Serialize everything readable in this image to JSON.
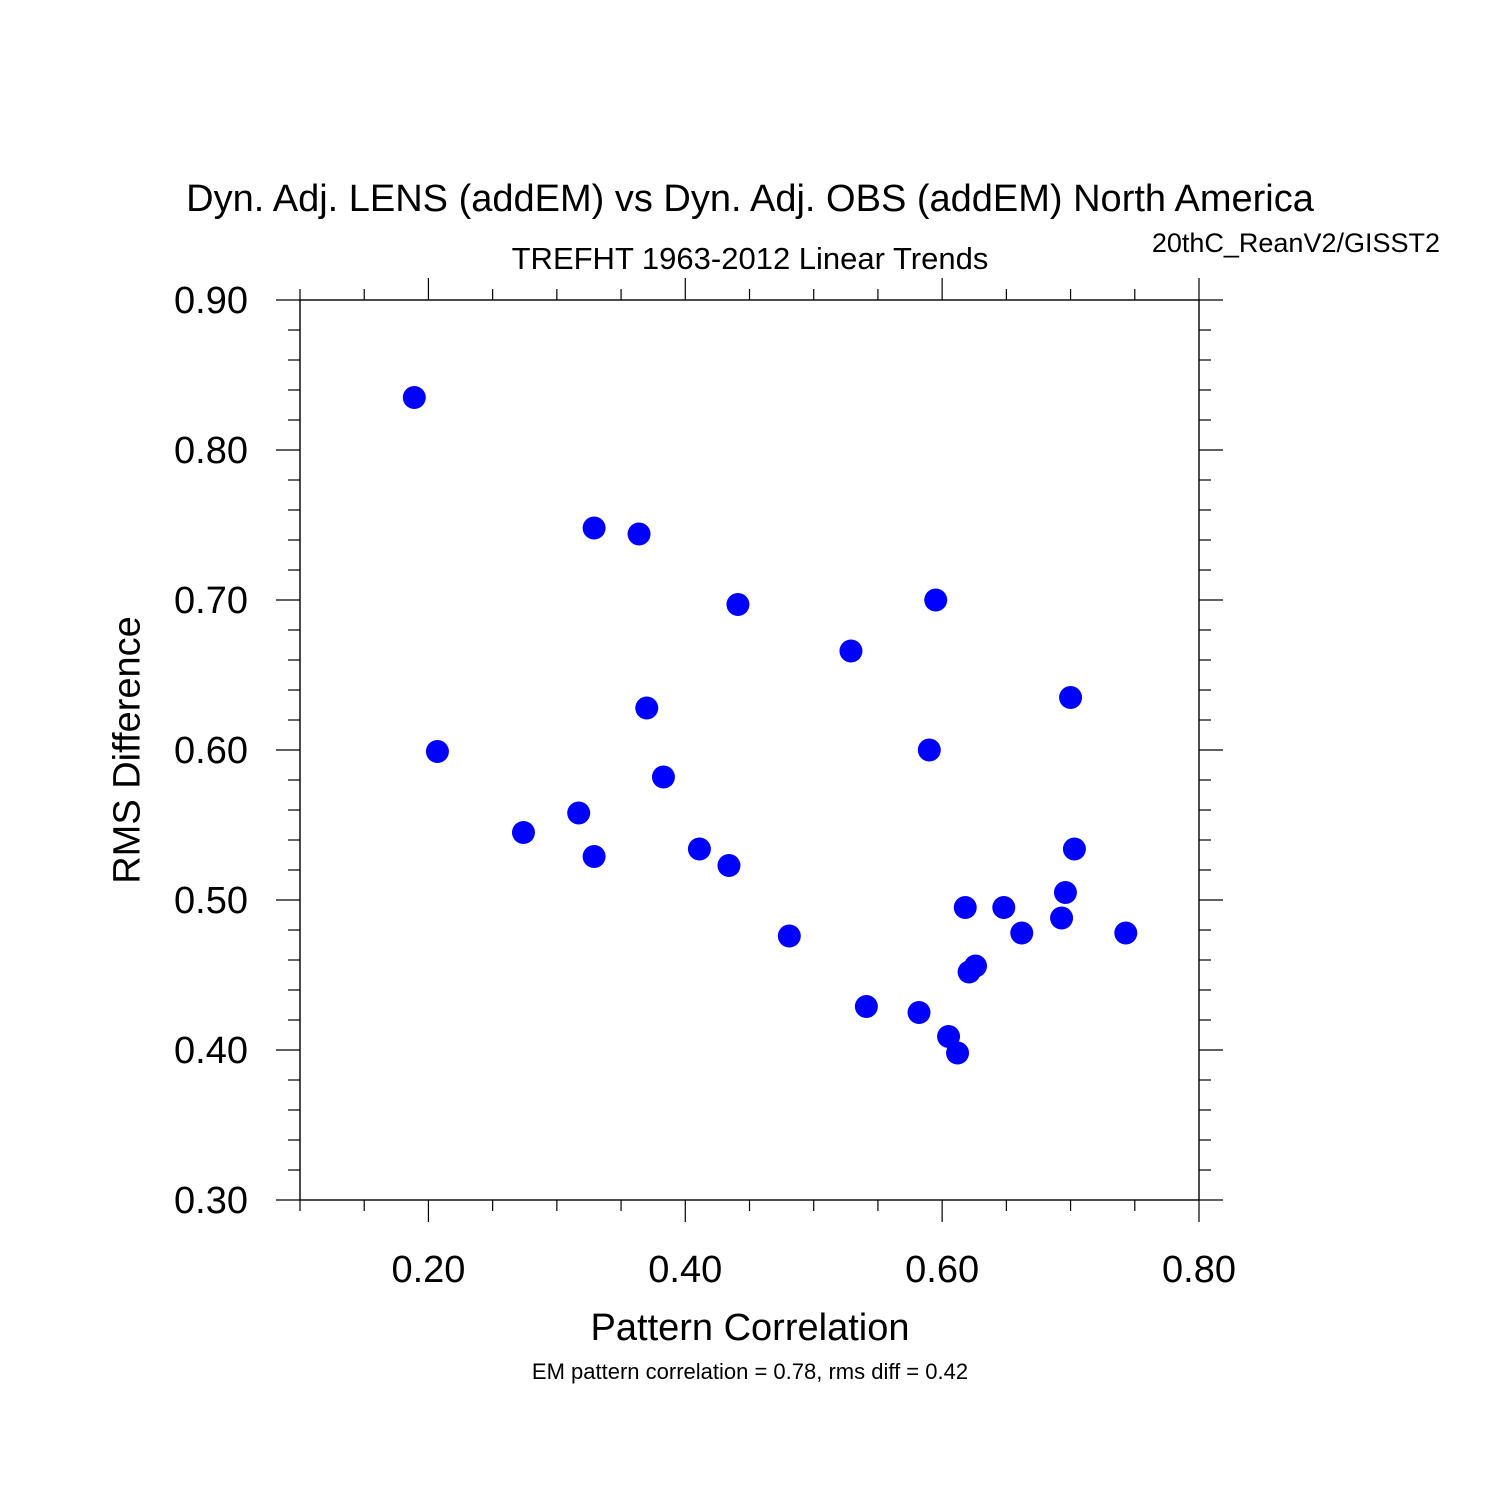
{
  "chart_data": {
    "type": "scatter",
    "title": "Dyn. Adj. LENS (addEM) vs Dyn. Adj. OBS (addEM) North America",
    "subtitle": "TREFHT 1963-2012 Linear Trends",
    "corner_label": "20thC_ReanV2/GISST2",
    "xlabel": "Pattern Correlation",
    "ylabel": "RMS Difference",
    "note": "EM pattern correlation = 0.78, rms diff = 0.42",
    "xlim": [
      0.1,
      0.8
    ],
    "ylim": [
      0.3,
      0.9
    ],
    "x_ticks": [
      "0.20",
      "0.40",
      "0.60",
      "0.80"
    ],
    "y_ticks": [
      "0.30",
      "0.40",
      "0.50",
      "0.60",
      "0.70",
      "0.80",
      "0.90"
    ],
    "marker_color": "#0000ff",
    "points": [
      {
        "x": 0.189,
        "y": 0.835
      },
      {
        "x": 0.329,
        "y": 0.748
      },
      {
        "x": 0.364,
        "y": 0.744
      },
      {
        "x": 0.441,
        "y": 0.697
      },
      {
        "x": 0.595,
        "y": 0.7
      },
      {
        "x": 0.529,
        "y": 0.666
      },
      {
        "x": 0.7,
        "y": 0.635
      },
      {
        "x": 0.37,
        "y": 0.628
      },
      {
        "x": 0.207,
        "y": 0.599
      },
      {
        "x": 0.59,
        "y": 0.6
      },
      {
        "x": 0.383,
        "y": 0.582
      },
      {
        "x": 0.317,
        "y": 0.558
      },
      {
        "x": 0.274,
        "y": 0.545
      },
      {
        "x": 0.411,
        "y": 0.534
      },
      {
        "x": 0.703,
        "y": 0.534
      },
      {
        "x": 0.329,
        "y": 0.529
      },
      {
        "x": 0.434,
        "y": 0.523
      },
      {
        "x": 0.696,
        "y": 0.505
      },
      {
        "x": 0.618,
        "y": 0.495
      },
      {
        "x": 0.648,
        "y": 0.495
      },
      {
        "x": 0.693,
        "y": 0.488
      },
      {
        "x": 0.481,
        "y": 0.476
      },
      {
        "x": 0.662,
        "y": 0.478
      },
      {
        "x": 0.743,
        "y": 0.478
      },
      {
        "x": 0.626,
        "y": 0.456
      },
      {
        "x": 0.621,
        "y": 0.452
      },
      {
        "x": 0.541,
        "y": 0.429
      },
      {
        "x": 0.582,
        "y": 0.425
      },
      {
        "x": 0.605,
        "y": 0.409
      },
      {
        "x": 0.612,
        "y": 0.398
      }
    ]
  }
}
